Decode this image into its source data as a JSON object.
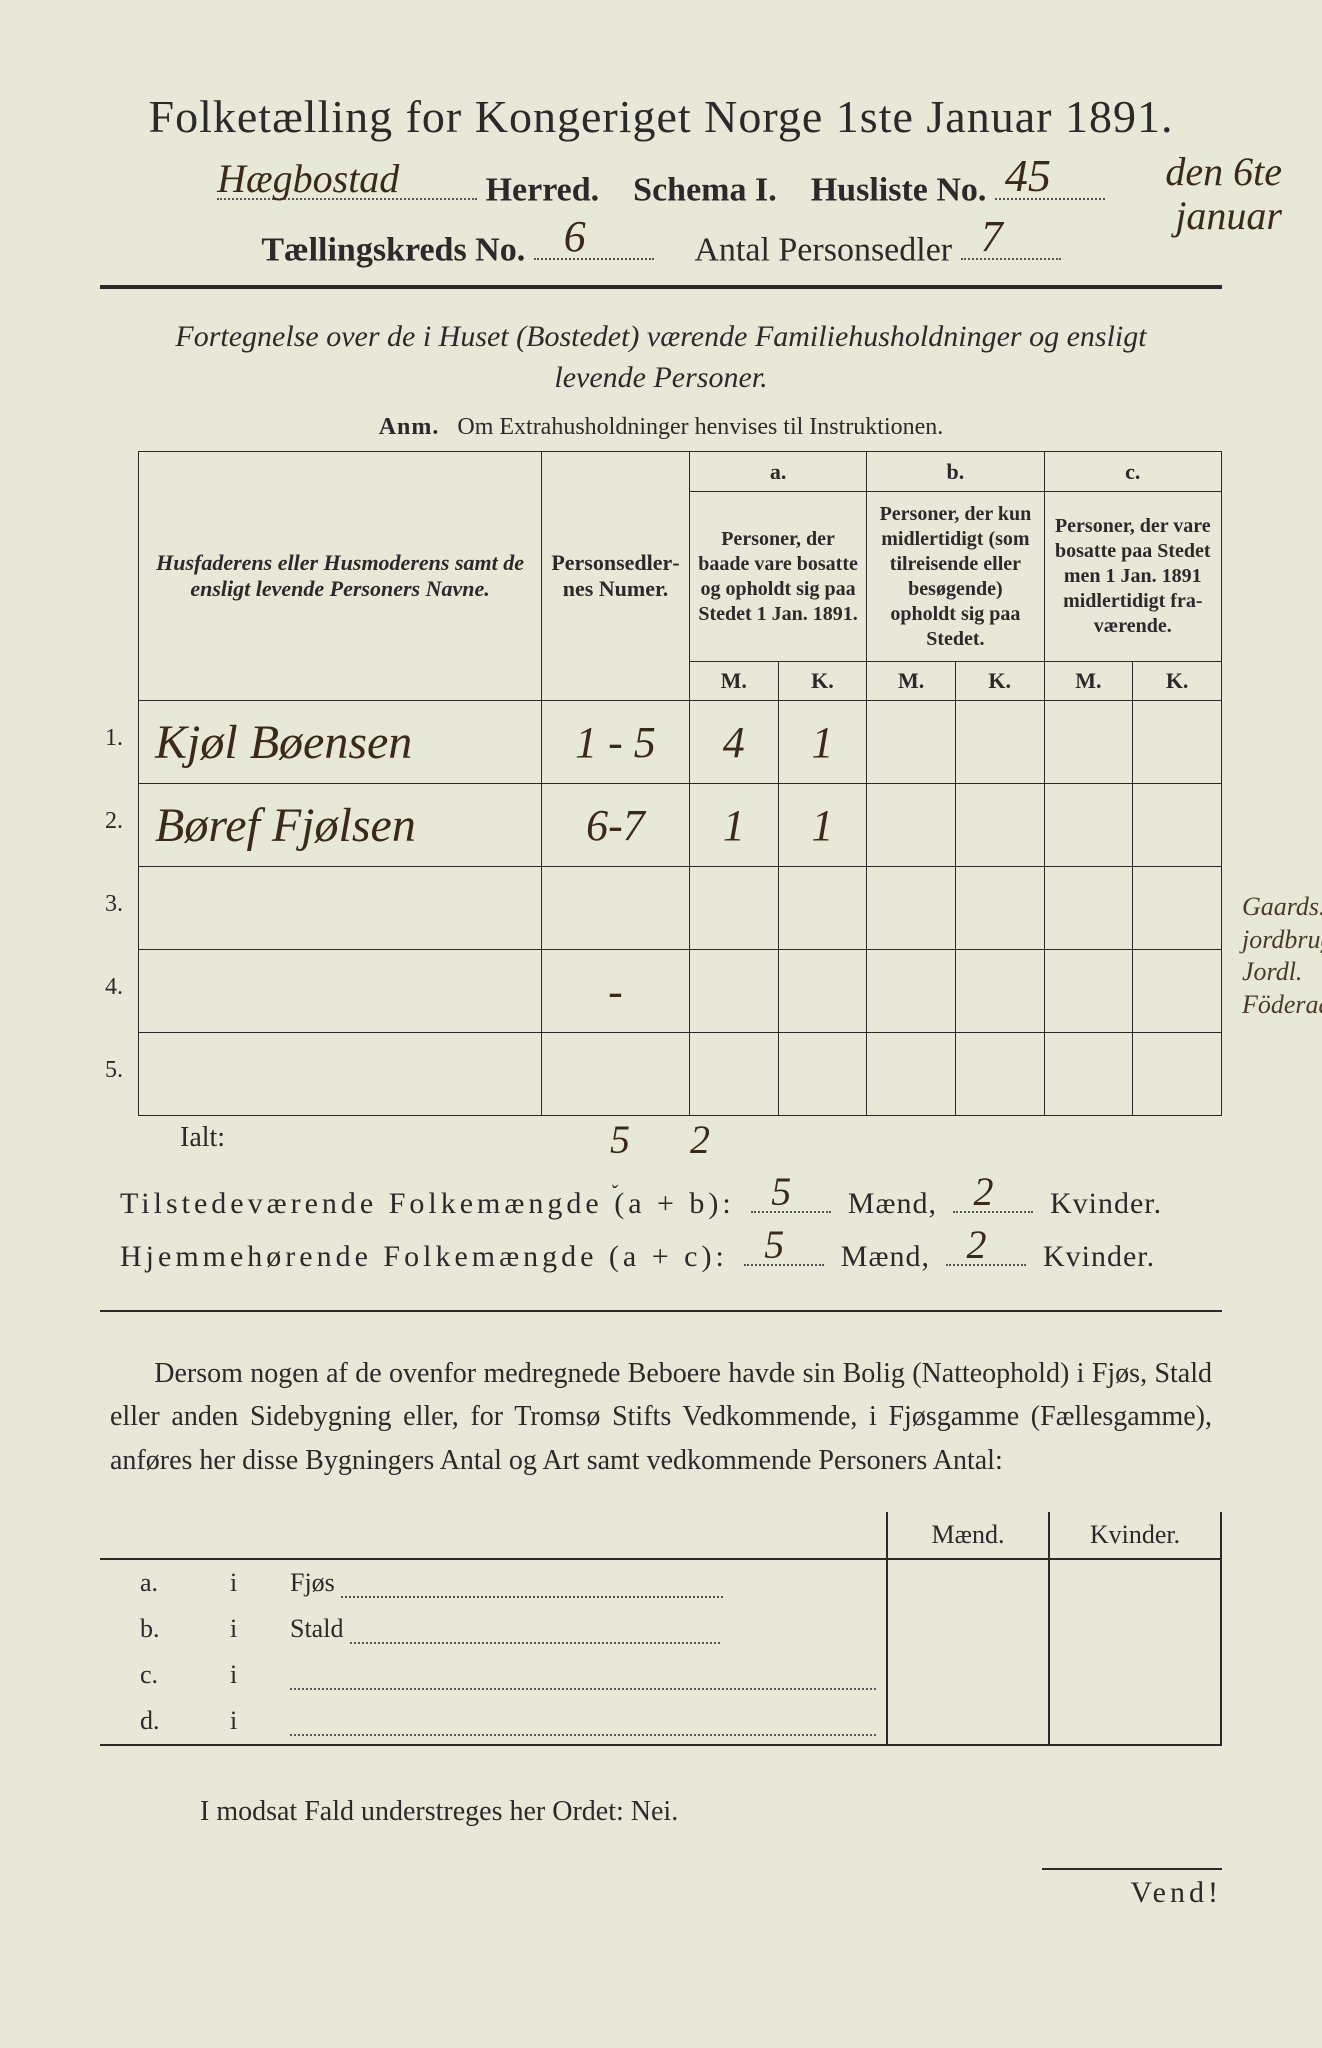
{
  "title": "Folketælling for Kongeriget Norge 1ste Januar 1891.",
  "line2": {
    "herred_hw": "Hægbostad",
    "herred_label": "Herred.",
    "schema_label": "Schema I.",
    "husliste_label": "Husliste No.",
    "husliste_hw": "45"
  },
  "margin_date": {
    "l1": "den 6te",
    "l2": "januar"
  },
  "line3": {
    "kreds_label": "Tællingskreds No.",
    "kreds_hw": "6",
    "sedler_label": "Antal Personsedler",
    "sedler_hw": "7"
  },
  "fortegnelse": {
    "l1a": "Fortegnelse over de i Huset (Bostedet) værende Familiehusholdninger og ensligt",
    "l2": "levende Personer."
  },
  "anm": {
    "label": "Anm.",
    "text": "Om Extrahusholdninger henvises til Instruktionen."
  },
  "table": {
    "col_name": "Husfaderens eller Husmode­rens samt de ensligt levende Personers Navne.",
    "col_nums": "Person­sedler­nes Numer.",
    "group_a_letter": "a.",
    "group_a": "Personer, der baade vare bo­satte og opholdt sig paa Stedet 1 Jan. 1891.",
    "group_b_letter": "b.",
    "group_b": "Personer, der kun midler­tidigt (som tilreisende eller besøgende) opholdt sig paa Stedet.",
    "group_c_letter": "c.",
    "group_c": "Personer, der vare bosatte paa Stedet men 1 Jan. 1891 midler­tidigt fra­værende.",
    "M": "M.",
    "K": "K.",
    "rows": [
      {
        "n": "1.",
        "name": "Kjøl Bøensen",
        "nums": "1 - 5",
        "aM": "4",
        "aK": "1",
        "bM": "",
        "bK": "",
        "cM": "",
        "cK": ""
      },
      {
        "n": "2.",
        "name": "Børef Fjølsen",
        "nums": "6-7",
        "aM": "1",
        "aK": "1",
        "bM": "",
        "bK": "",
        "cM": "",
        "cK": ""
      },
      {
        "n": "3.",
        "name": "",
        "nums": "",
        "aM": "",
        "aK": "",
        "bM": "",
        "bK": "",
        "cM": "",
        "cK": ""
      },
      {
        "n": "4.",
        "name": "",
        "nums": "-",
        "aM": "",
        "aK": "",
        "bM": "",
        "bK": "",
        "cM": "",
        "cK": ""
      },
      {
        "n": "5.",
        "name": "",
        "nums": "",
        "aM": "",
        "aK": "",
        "bM": "",
        "bK": "",
        "cM": "",
        "cK": ""
      }
    ],
    "marginal": {
      "l1": "Gaards. Selv",
      "l2": "jordbruger.",
      "l3": "Jordl.",
      "l4": "Föderaadsmand"
    }
  },
  "ialt": {
    "label": "Ialt:",
    "t1": "5",
    "t2": "2"
  },
  "summary1": {
    "label": "Tilstedeværende Folkemængde (a + b):",
    "m": "5",
    "mlabel": "Mænd,",
    "k": "2",
    "klabel": "Kvinder."
  },
  "summary2": {
    "label": "Hjemmehørende Folkemængde (a + c):",
    "m": "5",
    "mlabel": "Mænd,",
    "k": "2",
    "klabel": "Kvinder."
  },
  "dersom": "Dersom nogen af de ovenfor medregnede Beboere havde sin Bolig (Natte­ophold) i Fjøs, Stald eller anden Sidebygning eller, for Tromsø Stifts Ved­kommende, i Fjøsgamme (Fællesgamme), anføres her disse Bygningers Antal og Art samt vedkommende Personers Antal:",
  "tbl2": {
    "maend": "Mænd.",
    "kvinder": "Kvinder.",
    "rows": [
      {
        "idx": "a.",
        "i": "i",
        "label": "Fjøs"
      },
      {
        "idx": "b.",
        "i": "i",
        "label": "Stald"
      },
      {
        "idx": "c.",
        "i": "i",
        "label": ""
      },
      {
        "idx": "d.",
        "i": "i",
        "label": ""
      }
    ]
  },
  "modsat": "I modsat Fald understreges her Ordet: Nei.",
  "vend": "Vend!"
}
